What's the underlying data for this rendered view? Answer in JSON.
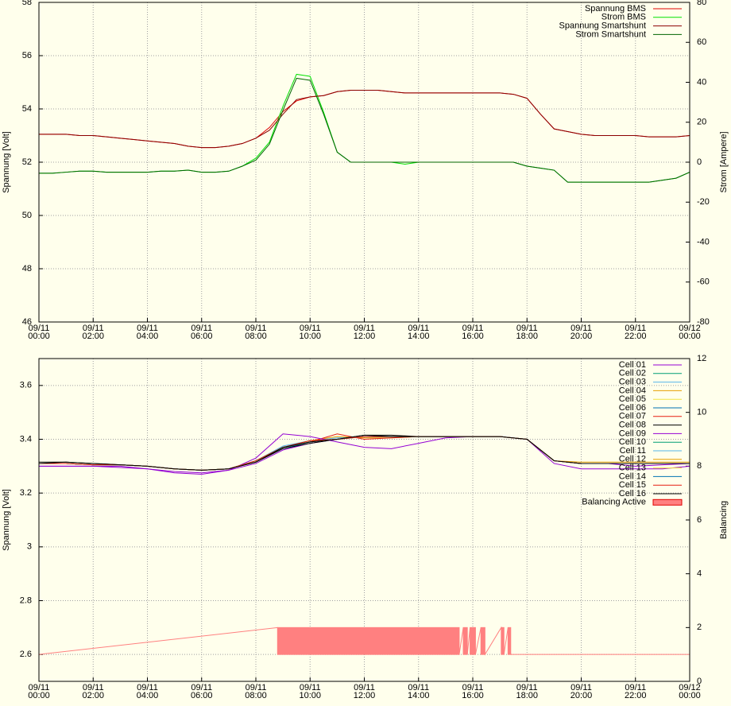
{
  "chart_data": [
    {
      "type": "line",
      "ylabel": "Spannung [Volt]",
      "y2label": "Strom [Ampere]",
      "xlim": [
        0,
        24
      ],
      "xticks": [
        {
          "value": 0,
          "label": "09/11\n00:00"
        },
        {
          "value": 2,
          "label": "09/11\n02:00"
        },
        {
          "value": 4,
          "label": "09/11\n04:00"
        },
        {
          "value": 6,
          "label": "09/11\n06:00"
        },
        {
          "value": 8,
          "label": "09/11\n08:00"
        },
        {
          "value": 10,
          "label": "09/11\n10:00"
        },
        {
          "value": 12,
          "label": "09/11\n12:00"
        },
        {
          "value": 14,
          "label": "09/11\n14:00"
        },
        {
          "value": 16,
          "label": "09/11\n16:00"
        },
        {
          "value": 18,
          "label": "09/11\n18:00"
        },
        {
          "value": 20,
          "label": "09/11\n20:00"
        },
        {
          "value": 22,
          "label": "09/11\n22:00"
        },
        {
          "value": 24,
          "label": "09/12\n00:00"
        }
      ],
      "ylim": [
        46,
        58
      ],
      "yticks": [
        46,
        48,
        50,
        52,
        54,
        56,
        58
      ],
      "y2lim": [
        -80,
        80
      ],
      "y2ticks": [
        -80,
        -60,
        -40,
        -20,
        0,
        20,
        40,
        60,
        80
      ],
      "grid": true,
      "legend": "top right",
      "x": [
        0,
        0.5,
        1,
        1.5,
        2,
        2.5,
        3,
        3.5,
        4,
        4.5,
        5,
        5.5,
        6,
        6.5,
        7,
        7.5,
        8,
        8.5,
        9,
        9.5,
        10,
        10.5,
        11,
        11.5,
        12,
        12.5,
        13,
        13.5,
        14,
        14.5,
        15,
        15.5,
        16,
        16.5,
        17,
        17.5,
        18,
        18.5,
        19,
        19.5,
        20,
        20.5,
        21,
        21.5,
        22,
        22.5,
        23,
        23.5,
        24
      ],
      "series": [
        {
          "name": "Spannung BMS",
          "color": "#e00000",
          "values": [
            53.05,
            53.05,
            53.05,
            53.0,
            53.0,
            52.95,
            52.9,
            52.85,
            52.8,
            52.75,
            52.7,
            52.6,
            52.55,
            52.55,
            52.6,
            52.7,
            52.9,
            53.3,
            53.9,
            54.3,
            54.45,
            54.5,
            54.65,
            54.7,
            54.7,
            54.7,
            54.65,
            54.6,
            54.6,
            54.6,
            54.6,
            54.6,
            54.6,
            54.6,
            54.6,
            54.55,
            54.4,
            53.8,
            53.25,
            53.15,
            53.05,
            53.0,
            53.0,
            53.0,
            53.0,
            52.95,
            52.95,
            52.95,
            53.0
          ]
        },
        {
          "name": "Strom BMS",
          "color": "#00e000",
          "axis": "y2",
          "values": [
            -5.5,
            -5.5,
            -5,
            -4.5,
            -4.5,
            -5,
            -5,
            -5,
            -5,
            -4.5,
            -4.5,
            -4,
            -5,
            -5,
            -4.5,
            -2,
            2,
            10,
            28,
            44,
            43,
            25,
            5,
            0,
            0,
            0,
            0,
            -1,
            0,
            0,
            0,
            0,
            0,
            0,
            0,
            0,
            -2,
            -3,
            -4,
            -10,
            -10,
            -10,
            -10,
            -10,
            -10,
            -10,
            -9,
            -8,
            -5
          ]
        },
        {
          "name": "Spannung Smartshunt",
          "color": "#8b0000",
          "values": [
            53.05,
            53.05,
            53.05,
            53.0,
            53.0,
            52.95,
            52.9,
            52.85,
            52.8,
            52.75,
            52.7,
            52.6,
            52.55,
            52.55,
            52.6,
            52.7,
            52.9,
            53.2,
            53.8,
            54.35,
            54.45,
            54.5,
            54.65,
            54.7,
            54.7,
            54.7,
            54.65,
            54.6,
            54.6,
            54.6,
            54.6,
            54.6,
            54.6,
            54.6,
            54.6,
            54.55,
            54.4,
            53.8,
            53.25,
            53.15,
            53.05,
            53.0,
            53.0,
            53.0,
            53.0,
            52.95,
            52.95,
            52.95,
            53.0
          ]
        },
        {
          "name": "Strom Smartshunt",
          "color": "#006400",
          "axis": "y2",
          "values": [
            -5.5,
            -5.5,
            -5,
            -4.5,
            -4.5,
            -5,
            -5,
            -5,
            -5,
            -4.5,
            -4.5,
            -4,
            -5,
            -5,
            -4.5,
            -2,
            1,
            9,
            26,
            42,
            41,
            24,
            5,
            0,
            0,
            0,
            0,
            0,
            0,
            0,
            0,
            0,
            0,
            0,
            0,
            0,
            -2,
            -3,
            -4,
            -10,
            -10,
            -10,
            -10,
            -10,
            -10,
            -10,
            -9,
            -8,
            -5
          ]
        }
      ]
    },
    {
      "type": "line",
      "ylabel": "Spannung [Volt]",
      "y2label": "Balancing",
      "xlim": [
        0,
        24
      ],
      "xticks": [
        {
          "value": 0,
          "label": "09/11\n00:00"
        },
        {
          "value": 2,
          "label": "09/11\n02:00"
        },
        {
          "value": 4,
          "label": "09/11\n04:00"
        },
        {
          "value": 6,
          "label": "09/11\n06:00"
        },
        {
          "value": 8,
          "label": "09/11\n08:00"
        },
        {
          "value": 10,
          "label": "09/11\n10:00"
        },
        {
          "value": 12,
          "label": "09/11\n12:00"
        },
        {
          "value": 14,
          "label": "09/11\n14:00"
        },
        {
          "value": 16,
          "label": "09/11\n16:00"
        },
        {
          "value": 18,
          "label": "09/11\n18:00"
        },
        {
          "value": 20,
          "label": "09/11\n20:00"
        },
        {
          "value": 22,
          "label": "09/11\n22:00"
        },
        {
          "value": 24,
          "label": "09/12\n00:00"
        }
      ],
      "ylim": [
        2.5,
        3.7
      ],
      "yticks": [
        2.6,
        2.8,
        3,
        3.2,
        3.4,
        3.6
      ],
      "y2lim": [
        0,
        12
      ],
      "y2ticks": [
        0,
        2,
        4,
        6,
        8,
        10,
        12
      ],
      "grid": true,
      "legend": "top right",
      "x": [
        0,
        1,
        2,
        3,
        4,
        5,
        6,
        7,
        8,
        9,
        10,
        11,
        12,
        13,
        14,
        15,
        16,
        17,
        18,
        19,
        20,
        21,
        22,
        23,
        24
      ],
      "series": [
        {
          "name": "Cell 01",
          "color": "#9400d3",
          "values": [
            3.3,
            3.3,
            3.3,
            3.3,
            3.29,
            3.28,
            3.275,
            3.285,
            3.31,
            3.36,
            3.385,
            3.4,
            3.41,
            3.41,
            3.41,
            3.41,
            3.41,
            3.41,
            3.4,
            3.32,
            3.31,
            3.31,
            3.3,
            3.305,
            3.31
          ]
        },
        {
          "name": "Cell 02",
          "color": "#009e73",
          "values": [
            3.31,
            3.31,
            3.305,
            3.305,
            3.3,
            3.29,
            3.285,
            3.29,
            3.32,
            3.37,
            3.39,
            3.4,
            3.41,
            3.41,
            3.41,
            3.41,
            3.41,
            3.41,
            3.4,
            3.32,
            3.31,
            3.31,
            3.31,
            3.31,
            3.31
          ]
        },
        {
          "name": "Cell 03",
          "color": "#56b4e9",
          "values": [
            3.31,
            3.31,
            3.305,
            3.305,
            3.3,
            3.29,
            3.285,
            3.29,
            3.32,
            3.375,
            3.395,
            3.405,
            3.41,
            3.41,
            3.41,
            3.41,
            3.41,
            3.41,
            3.4,
            3.32,
            3.31,
            3.31,
            3.31,
            3.31,
            3.31
          ]
        },
        {
          "name": "Cell 04",
          "color": "#e69f00",
          "values": [
            3.31,
            3.31,
            3.305,
            3.305,
            3.3,
            3.29,
            3.285,
            3.29,
            3.32,
            3.37,
            3.395,
            3.41,
            3.405,
            3.405,
            3.41,
            3.41,
            3.41,
            3.41,
            3.4,
            3.32,
            3.31,
            3.31,
            3.31,
            3.31,
            3.31
          ]
        },
        {
          "name": "Cell 05",
          "color": "#f0e442",
          "values": [
            3.31,
            3.31,
            3.305,
            3.305,
            3.3,
            3.29,
            3.285,
            3.29,
            3.32,
            3.37,
            3.39,
            3.4,
            3.41,
            3.41,
            3.41,
            3.41,
            3.41,
            3.41,
            3.4,
            3.32,
            3.31,
            3.31,
            3.31,
            3.31,
            3.31
          ]
        },
        {
          "name": "Cell 06",
          "color": "#0072b2",
          "values": [
            3.31,
            3.31,
            3.305,
            3.305,
            3.3,
            3.29,
            3.285,
            3.29,
            3.32,
            3.365,
            3.39,
            3.4,
            3.41,
            3.41,
            3.41,
            3.41,
            3.41,
            3.41,
            3.4,
            3.32,
            3.31,
            3.31,
            3.31,
            3.31,
            3.31
          ]
        },
        {
          "name": "Cell 07",
          "color": "#e51e10",
          "values": [
            3.31,
            3.31,
            3.305,
            3.305,
            3.3,
            3.29,
            3.285,
            3.29,
            3.32,
            3.37,
            3.39,
            3.42,
            3.4,
            3.405,
            3.41,
            3.41,
            3.41,
            3.41,
            3.4,
            3.32,
            3.31,
            3.31,
            3.31,
            3.31,
            3.31
          ]
        },
        {
          "name": "Cell 08",
          "color": "#000000",
          "values": [
            3.315,
            3.315,
            3.31,
            3.305,
            3.3,
            3.29,
            3.285,
            3.29,
            3.315,
            3.365,
            3.385,
            3.4,
            3.415,
            3.415,
            3.41,
            3.41,
            3.41,
            3.41,
            3.4,
            3.32,
            3.31,
            3.31,
            3.31,
            3.31,
            3.31
          ]
        },
        {
          "name": "Cell 09",
          "color": "#9400d3",
          "values": [
            3.3,
            3.3,
            3.3,
            3.295,
            3.29,
            3.275,
            3.27,
            3.285,
            3.33,
            3.42,
            3.41,
            3.39,
            3.37,
            3.365,
            3.385,
            3.405,
            3.41,
            3.41,
            3.4,
            3.31,
            3.29,
            3.29,
            3.29,
            3.29,
            3.3
          ]
        },
        {
          "name": "Cell 10",
          "color": "#009e73",
          "values": [
            3.31,
            3.31,
            3.305,
            3.305,
            3.3,
            3.29,
            3.285,
            3.29,
            3.32,
            3.37,
            3.39,
            3.4,
            3.41,
            3.41,
            3.41,
            3.41,
            3.41,
            3.41,
            3.4,
            3.32,
            3.31,
            3.31,
            3.31,
            3.31,
            3.31
          ]
        },
        {
          "name": "Cell 11",
          "color": "#56b4e9",
          "values": [
            3.31,
            3.31,
            3.305,
            3.305,
            3.3,
            3.29,
            3.285,
            3.29,
            3.32,
            3.37,
            3.39,
            3.4,
            3.41,
            3.41,
            3.41,
            3.41,
            3.41,
            3.41,
            3.4,
            3.32,
            3.31,
            3.31,
            3.31,
            3.31,
            3.31
          ]
        },
        {
          "name": "Cell 12",
          "color": "#e69f00",
          "values": [
            3.31,
            3.31,
            3.305,
            3.305,
            3.3,
            3.29,
            3.285,
            3.29,
            3.32,
            3.37,
            3.39,
            3.4,
            3.41,
            3.41,
            3.41,
            3.41,
            3.41,
            3.41,
            3.4,
            3.32,
            3.315,
            3.315,
            3.315,
            3.315,
            3.315
          ]
        },
        {
          "name": "Cell 13",
          "color": "#f0e442",
          "values": [
            3.31,
            3.31,
            3.305,
            3.305,
            3.3,
            3.29,
            3.285,
            3.29,
            3.32,
            3.37,
            3.39,
            3.4,
            3.41,
            3.41,
            3.41,
            3.41,
            3.41,
            3.41,
            3.4,
            3.32,
            3.31,
            3.31,
            3.31,
            3.31,
            3.31
          ]
        },
        {
          "name": "Cell 14",
          "color": "#0072b2",
          "values": [
            3.31,
            3.31,
            3.305,
            3.305,
            3.3,
            3.29,
            3.285,
            3.29,
            3.32,
            3.37,
            3.39,
            3.4,
            3.41,
            3.41,
            3.41,
            3.41,
            3.41,
            3.41,
            3.4,
            3.32,
            3.31,
            3.31,
            3.31,
            3.31,
            3.31
          ]
        },
        {
          "name": "Cell 15",
          "color": "#e51e10",
          "values": [
            3.31,
            3.31,
            3.305,
            3.305,
            3.3,
            3.29,
            3.285,
            3.29,
            3.32,
            3.37,
            3.395,
            3.4,
            3.41,
            3.41,
            3.41,
            3.41,
            3.41,
            3.41,
            3.4,
            3.32,
            3.31,
            3.31,
            3.31,
            3.31,
            3.31
          ]
        },
        {
          "name": "Cell 16",
          "color": "#000000",
          "values": [
            3.31,
            3.315,
            3.31,
            3.305,
            3.3,
            3.29,
            3.285,
            3.29,
            3.315,
            3.37,
            3.39,
            3.4,
            3.415,
            3.41,
            3.41,
            3.41,
            3.41,
            3.41,
            3.4,
            3.32,
            3.31,
            3.31,
            3.31,
            3.31,
            3.31
          ]
        },
        {
          "name": "Balancing Active",
          "color": "#ff8080",
          "axis": "y2",
          "style": "filledsteps",
          "x": [
            0,
            8.8,
            15.5,
            15.65,
            15.8,
            15.9,
            16.1,
            16.3,
            16.45,
            17.05,
            17.15,
            17.3,
            17.4,
            24
          ],
          "values": [
            1,
            2,
            1,
            2,
            1,
            2,
            1,
            2,
            1,
            2,
            1,
            2,
            1,
            1
          ]
        }
      ]
    }
  ]
}
